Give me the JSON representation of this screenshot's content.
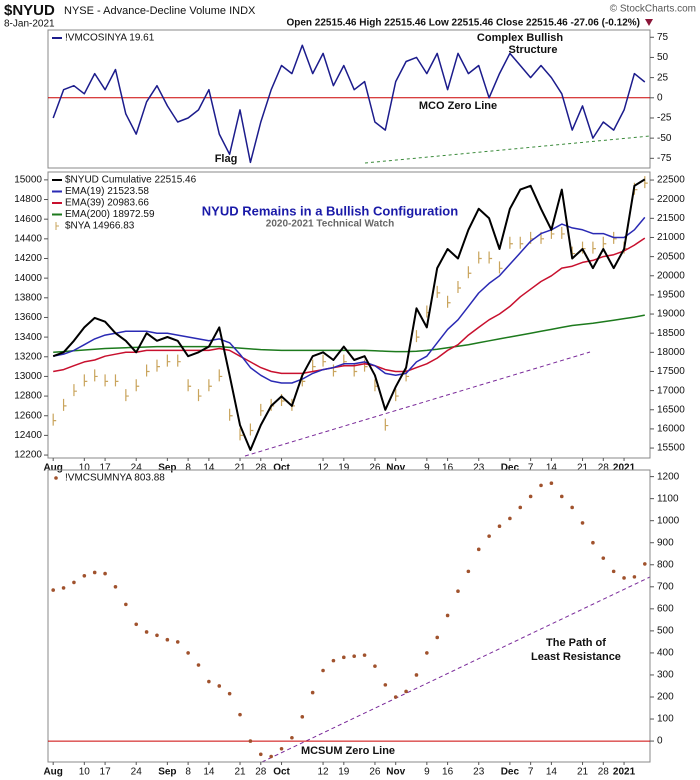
{
  "header": {
    "symbol": "$NYUD",
    "description": "NYSE - Advance-Decline Volume INDX",
    "date": "8-Jan-2021",
    "ohlc": "Open 22515.46  High 22515.46  Low 22515.46  Close 22515.46  -27.06 (-0.12%)",
    "credit": "© StockCharts.com"
  },
  "chart_data": [
    {
      "type": "line",
      "y_axis_side": "right",
      "zero_line_color": "#cc0000",
      "ylim": [
        -87,
        84
      ],
      "yticks": [
        75,
        50,
        25,
        0,
        -25,
        -50,
        -75
      ],
      "series": [
        {
          "name": "!VMCOSINYA 19.61",
          "color": "#1c1c8c",
          "values": [
            -25,
            10,
            15,
            5,
            30,
            10,
            35,
            -20,
            -45,
            -5,
            15,
            -10,
            -30,
            -25,
            -15,
            10,
            -45,
            -70,
            -15,
            -80,
            -30,
            10,
            40,
            30,
            65,
            30,
            55,
            15,
            40,
            10,
            20,
            -30,
            -40,
            20,
            45,
            50,
            30,
            55,
            10,
            55,
            30,
            40,
            0,
            30,
            55,
            40,
            25,
            40,
            25,
            5,
            -40,
            -10,
            -50,
            -30,
            -40,
            -15,
            30,
            19.61
          ]
        }
      ],
      "annotations": [
        {
          "text": "Complex Bullish",
          "color": "#b0b0b0"
        },
        {
          "text": "Structure",
          "color": "#b0b0b0"
        },
        {
          "text": "MCO Zero Line",
          "color": "#cc0000"
        },
        {
          "text": "Flag",
          "color": "#3a7a22"
        }
      ]
    },
    {
      "type": "line",
      "y_axis_side": "left",
      "title": "NYUD Remains in a Bullish Configuration",
      "subtitle": "2020-2021 Technical Watch",
      "categories": [
        "Aug",
        null,
        null,
        "10",
        null,
        "17",
        null,
        null,
        "24",
        null,
        null,
        "Sep",
        null,
        "8",
        null,
        "14",
        null,
        null,
        "21",
        null,
        "28",
        null,
        "Oct",
        null,
        null,
        null,
        "12",
        null,
        "19",
        null,
        null,
        "26",
        null,
        "Nov",
        null,
        null,
        "9",
        null,
        "16",
        null,
        null,
        "23",
        null,
        null,
        "Dec",
        null,
        "7",
        null,
        "14",
        null,
        null,
        "21",
        null,
        "28",
        null,
        "2021",
        null,
        null
      ],
      "ylim": [
        12170,
        15080
      ],
      "yticks": [
        12200,
        12400,
        12600,
        12800,
        13000,
        13200,
        13400,
        13600,
        13800,
        14000,
        14200,
        14400,
        14600,
        14800,
        15000
      ],
      "y2lim": [
        15240,
        22710
      ],
      "y2ticks": [
        15500,
        16000,
        16500,
        17000,
        17500,
        18000,
        18500,
        19000,
        19500,
        20000,
        20500,
        21000,
        21500,
        22000,
        22500
      ],
      "series": [
        {
          "name": "$NYUD Cumulative 22515.46",
          "color": "#000000",
          "axis": "y2",
          "values": [
            17900,
            18000,
            18300,
            18650,
            18900,
            18800,
            18500,
            18300,
            18000,
            18500,
            18300,
            18400,
            18300,
            17900,
            18000,
            18150,
            18650,
            17400,
            16100,
            15450,
            16100,
            16600,
            16850,
            16600,
            17400,
            17900,
            18000,
            17800,
            18150,
            17800,
            17900,
            17400,
            16500,
            17100,
            17600,
            19150,
            18650,
            20200,
            20700,
            20450,
            21200,
            21750,
            21500,
            20700,
            21750,
            22250,
            22350,
            21750,
            21200,
            22250,
            20450,
            20700,
            20200,
            20700,
            20200,
            20700,
            22350,
            22515.46
          ]
        },
        {
          "name": "EMA(19) 21523.58",
          "color": "#2a2ab4",
          "axis": "y2",
          "values": [
            17900,
            17950,
            18050,
            18200,
            18350,
            18450,
            18500,
            18550,
            18550,
            18550,
            18500,
            18500,
            18450,
            18400,
            18350,
            18300,
            18350,
            18250,
            17950,
            17600,
            17400,
            17250,
            17200,
            17200,
            17300,
            17450,
            17550,
            17600,
            17700,
            17700,
            17750,
            17650,
            17450,
            17400,
            17450,
            17750,
            17900,
            18250,
            18600,
            18850,
            19200,
            19550,
            19800,
            20000,
            20300,
            20600,
            20900,
            21100,
            21200,
            21350,
            21250,
            21200,
            21100,
            21100,
            21000,
            21000,
            21200,
            21523.58
          ]
        },
        {
          "name": "EMA(39) 20983.66",
          "color": "#c8102e",
          "axis": "y2",
          "values": [
            17500,
            17550,
            17650,
            17750,
            17800,
            17900,
            17950,
            18000,
            18000,
            18050,
            18050,
            18050,
            18050,
            18050,
            18050,
            18050,
            18100,
            18050,
            17900,
            17750,
            17600,
            17500,
            17450,
            17450,
            17450,
            17500,
            17550,
            17600,
            17650,
            17650,
            17700,
            17650,
            17550,
            17500,
            17500,
            17600,
            17700,
            17850,
            18050,
            18200,
            18450,
            18650,
            18850,
            19000,
            19200,
            19450,
            19650,
            19850,
            20000,
            20200,
            20250,
            20350,
            20400,
            20500,
            20550,
            20650,
            20800,
            20983.66
          ]
        },
        {
          "name": "EMA(200) 18972.59",
          "color": "#1d7a1d",
          "axis": "y2",
          "values": [
            18000,
            18020,
            18040,
            18060,
            18080,
            18100,
            18110,
            18120,
            18130,
            18140,
            18150,
            18150,
            18150,
            18150,
            18150,
            18150,
            18150,
            18130,
            18110,
            18090,
            18070,
            18060,
            18050,
            18050,
            18050,
            18050,
            18050,
            18050,
            18050,
            18050,
            18050,
            18040,
            18030,
            18020,
            18020,
            18030,
            18050,
            18080,
            18120,
            18160,
            18200,
            18250,
            18300,
            18350,
            18400,
            18450,
            18500,
            18550,
            18600,
            18650,
            18700,
            18730,
            18760,
            18800,
            18840,
            18880,
            18920,
            18972.59
          ]
        },
        {
          "name": "$NYA 14966.83",
          "color": "#c9a45c",
          "marker": "price-bar",
          "values": [
            12550,
            12700,
            12850,
            12950,
            13000,
            12950,
            12950,
            12800,
            12900,
            13050,
            13100,
            13150,
            13150,
            12900,
            12800,
            12900,
            13000,
            12600,
            12400,
            12450,
            12650,
            12700,
            12750,
            12700,
            12950,
            13100,
            13150,
            13050,
            13150,
            13050,
            13100,
            12900,
            12500,
            12800,
            13000,
            13400,
            13650,
            13850,
            13750,
            13900,
            14050,
            14200,
            14200,
            14100,
            14350,
            14350,
            14400,
            14400,
            14450,
            14450,
            14250,
            14300,
            14300,
            14350,
            14400,
            14300,
            14900,
            14966.83
          ]
        }
      ]
    },
    {
      "type": "dot",
      "y_axis_side": "right",
      "zero_line_color": "#cc0000",
      "categories": [
        "Aug",
        null,
        null,
        "10",
        null,
        "17",
        null,
        null,
        "24",
        null,
        null,
        "Sep",
        null,
        "8",
        null,
        "14",
        null,
        null,
        "21",
        null,
        "28",
        null,
        "Oct",
        null,
        null,
        null,
        "12",
        null,
        "19",
        null,
        null,
        "26",
        null,
        "Nov",
        null,
        null,
        "9",
        null,
        "16",
        null,
        null,
        "23",
        null,
        null,
        "Dec",
        null,
        "7",
        null,
        "14",
        null,
        null,
        "21",
        null,
        "28",
        null,
        "2021",
        null,
        null
      ],
      "ylim": [
        -95,
        1230
      ],
      "yticks": [
        0,
        100,
        200,
        300,
        400,
        500,
        600,
        700,
        800,
        900,
        1000,
        1100,
        1200
      ],
      "series": [
        {
          "name": "!VMCSUMNYA 803.88",
          "color": "#a0522d",
          "values": [
            685,
            695,
            720,
            750,
            765,
            760,
            700,
            620,
            530,
            495,
            480,
            460,
            450,
            400,
            345,
            270,
            250,
            215,
            120,
            0,
            -60,
            -70,
            -35,
            15,
            110,
            220,
            320,
            365,
            380,
            385,
            390,
            340,
            255,
            200,
            225,
            300,
            400,
            470,
            570,
            680,
            770,
            870,
            930,
            975,
            1010,
            1060,
            1110,
            1160,
            1170,
            1110,
            1060,
            990,
            900,
            830,
            770,
            740,
            745,
            803.88
          ]
        }
      ],
      "annotations": [
        {
          "text": "MCSUM Zero Line",
          "color": "#cc0000"
        },
        {
          "text": "The Path of",
          "color": "#5a1a6e"
        },
        {
          "text": "Least Resistance",
          "color": "#5a1a6e"
        }
      ]
    }
  ]
}
